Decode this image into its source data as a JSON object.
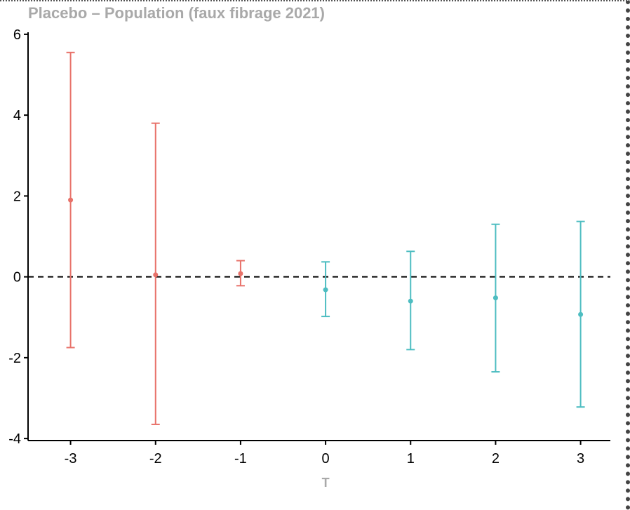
{
  "chart_data": {
    "type": "scatter",
    "title": "Placebo – Population (faux fibrage 2021)",
    "xlabel": "T",
    "ylabel": "",
    "x_ticks": [
      "-3",
      "-2",
      "-1",
      "0",
      "1",
      "2",
      "3"
    ],
    "y_ticks": [
      "-4",
      "-2",
      "0",
      "2",
      "4",
      "6"
    ],
    "xlim": [
      -3.5,
      3.35
    ],
    "ylim": [
      -4.05,
      6.05
    ],
    "reference_line": {
      "y": 0,
      "style": "dashed"
    },
    "grid": false,
    "series": [
      {
        "color": "#e8726a",
        "points": [
          {
            "x": -3,
            "y": 1.9,
            "lower": -1.75,
            "upper": 5.55
          },
          {
            "x": -2,
            "y": 0.05,
            "lower": -3.65,
            "upper": 3.8
          },
          {
            "x": -1,
            "y": 0.08,
            "lower": -0.22,
            "upper": 0.4
          }
        ]
      },
      {
        "color": "#4dbdc1",
        "points": [
          {
            "x": 0,
            "y": -0.32,
            "lower": -0.98,
            "upper": 0.37
          },
          {
            "x": 1,
            "y": -0.6,
            "lower": -1.8,
            "upper": 0.63
          },
          {
            "x": 2,
            "y": -0.52,
            "lower": -2.35,
            "upper": 1.3
          },
          {
            "x": 3,
            "y": -0.93,
            "lower": -3.22,
            "upper": 1.37
          }
        ]
      }
    ]
  }
}
